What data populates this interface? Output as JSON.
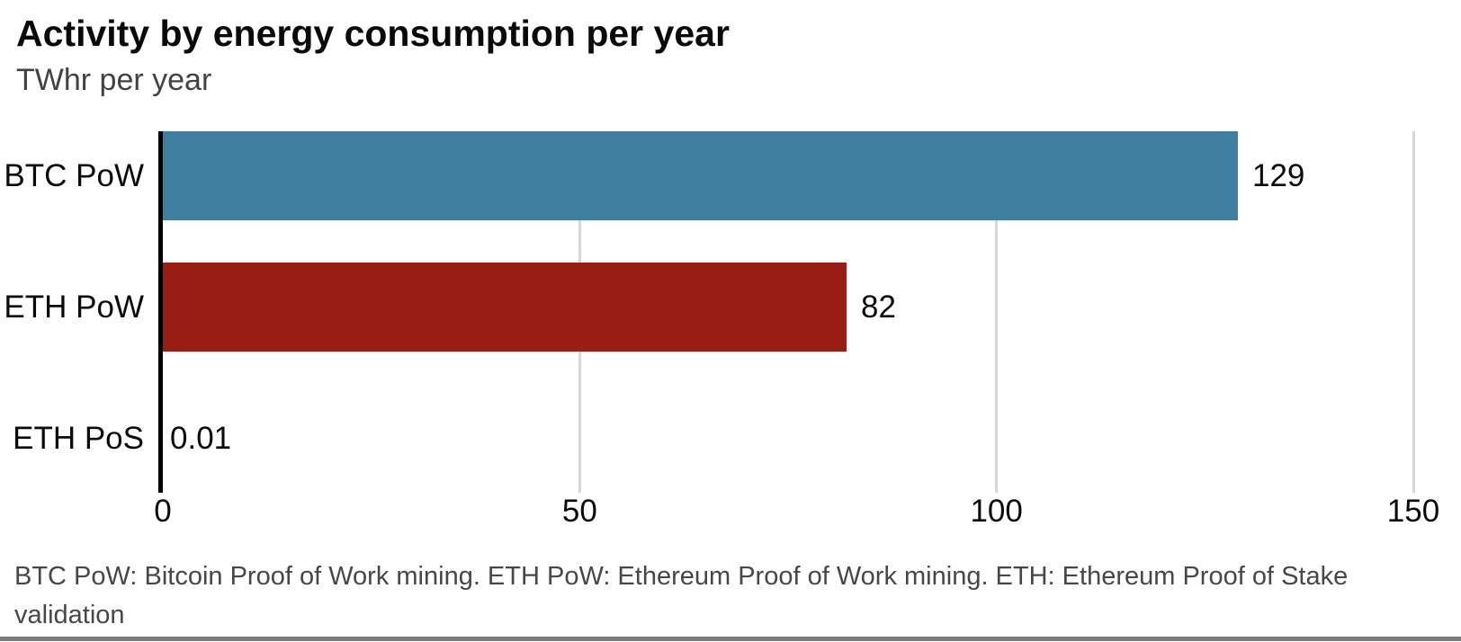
{
  "chart_data": {
    "type": "bar",
    "orientation": "horizontal",
    "title": "Activity by energy consumption per year",
    "subtitle": "TWhr per year",
    "categories": [
      "BTC PoW",
      "ETH PoW",
      "ETH PoS"
    ],
    "values": [
      129,
      82,
      0.01
    ],
    "value_labels": [
      "129",
      "82",
      "0.01"
    ],
    "bar_colors": [
      "#3e7fa0",
      "#9a1d14",
      null
    ],
    "xlim": [
      0,
      150
    ],
    "x_ticks": [
      0,
      50,
      100,
      150
    ],
    "x_tick_labels": [
      "0",
      "50",
      "100",
      "150"
    ],
    "grid": true,
    "legend_position": "none",
    "footnote": "BTC PoW: Bitcoin Proof of Work mining. ETH PoW: Ethereum Proof of Work mining. ETH: Ethereum Proof of Stake validation",
    "footnote_lines": [
      "BTC PoW: Bitcoin Proof of Work mining. ETH PoW: Ethereum Proof of Work mining. ETH: Ethereum Proof of Stake",
      "validation"
    ]
  },
  "style": {
    "bar_blue": "#3e7fa0",
    "bar_red": "#9a1d14",
    "gridline_color": "#d8d8d8",
    "axis_color": "#000000",
    "muted_text_color": "#474747",
    "divider_color": "#7b7b7b",
    "background_color": "#ffffff"
  }
}
